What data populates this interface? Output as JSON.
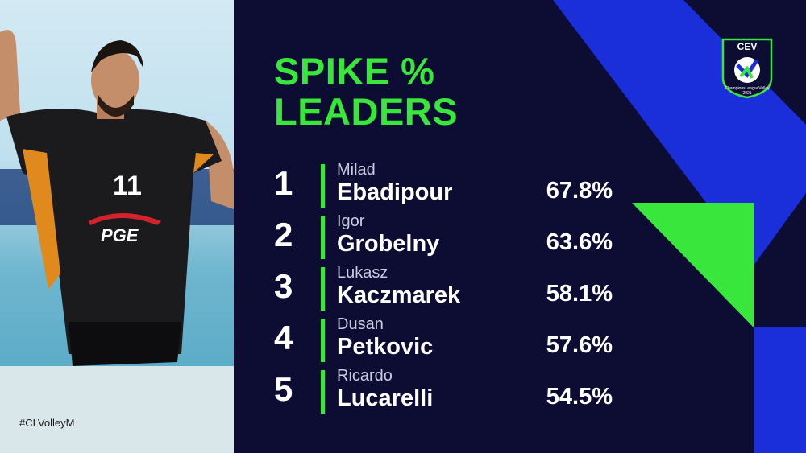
{
  "title_line1": "SPIKE %",
  "title_line2": "LEADERS",
  "hashtag": "#CLVolleyM",
  "logo_text": "CEV",
  "logo_subtext": "ChampionsLeagueVolley 2021",
  "jersey_number": "11",
  "jersey_sponsor": "PGE",
  "colors": {
    "background": "#0d0d33",
    "accent_green": "#39e63b",
    "accent_blue": "#1a2ed9"
  },
  "leaders": [
    {
      "rank": "1",
      "first": "Milad",
      "last": "Ebadipour",
      "pct": "67.8%"
    },
    {
      "rank": "2",
      "first": "Igor",
      "last": "Grobelny",
      "pct": "63.6%"
    },
    {
      "rank": "3",
      "first": "Lukasz",
      "last": "Kaczmarek",
      "pct": "58.1%"
    },
    {
      "rank": "4",
      "first": "Dusan",
      "last": "Petkovic",
      "pct": "57.6%"
    },
    {
      "rank": "5",
      "first": "Ricardo",
      "last": "Lucarelli",
      "pct": "54.5%"
    }
  ]
}
